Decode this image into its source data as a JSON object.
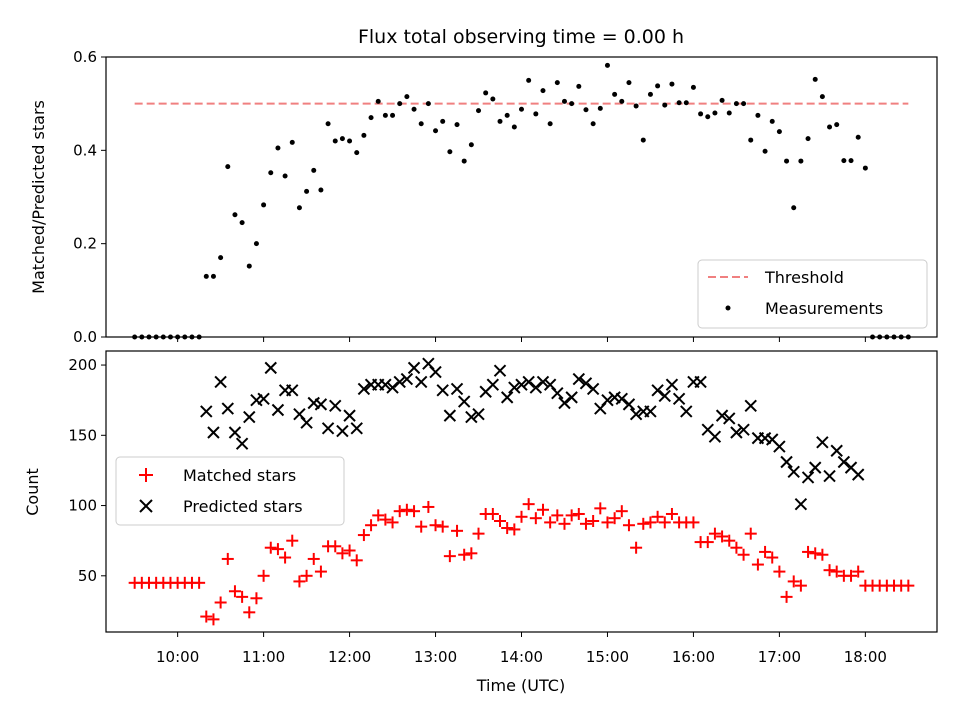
{
  "chart_data": [
    {
      "type": "scatter",
      "title": "Flux total observing time = 0.00 h",
      "ylabel": "Matched/Predicted stars",
      "ylim": [
        0,
        0.6
      ],
      "yticks": [
        "0.0",
        "0.2",
        "0.4",
        "0.6"
      ],
      "legend": {
        "position": "lower-right",
        "entries": [
          "Threshold",
          "Measurements"
        ]
      },
      "threshold": {
        "name": "Threshold",
        "value": 0.5,
        "x_start": "09:30",
        "x_end": "18:30",
        "color": "#f08080"
      },
      "series": [
        {
          "name": "Measurements",
          "color": "#000000",
          "x": [
            "09:30",
            "09:35",
            "09:40",
            "09:45",
            "09:50",
            "09:55",
            "10:00",
            "10:05",
            "10:10",
            "10:15",
            "10:20",
            "10:25",
            "10:30",
            "10:35",
            "10:40",
            "10:45",
            "10:50",
            "10:55",
            "11:00",
            "11:05",
            "11:10",
            "11:15",
            "11:20",
            "11:25",
            "11:30",
            "11:35",
            "11:40",
            "11:45",
            "11:50",
            "11:55",
            "12:00",
            "12:05",
            "12:10",
            "12:15",
            "12:20",
            "12:25",
            "12:30",
            "12:35",
            "12:40",
            "12:45",
            "12:50",
            "12:55",
            "13:00",
            "13:05",
            "13:10",
            "13:15",
            "13:20",
            "13:25",
            "13:30",
            "13:35",
            "13:40",
            "13:45",
            "13:50",
            "13:55",
            "14:00",
            "14:05",
            "14:10",
            "14:15",
            "14:20",
            "14:25",
            "14:30",
            "14:35",
            "14:40",
            "14:45",
            "14:50",
            "14:55",
            "15:00",
            "15:05",
            "15:10",
            "15:15",
            "15:20",
            "15:25",
            "15:30",
            "15:35",
            "15:40",
            "15:45",
            "15:50",
            "15:55",
            "16:00",
            "16:05",
            "16:10",
            "16:15",
            "16:20",
            "16:25",
            "16:30",
            "16:35",
            "16:40",
            "16:45",
            "16:50",
            "16:55",
            "17:00",
            "17:05",
            "17:10",
            "17:15",
            "17:20",
            "17:25",
            "17:30",
            "17:35",
            "17:40",
            "17:45",
            "17:50",
            "17:55",
            "18:00",
            "18:05",
            "18:10",
            "18:15",
            "18:20",
            "18:25",
            "18:30"
          ],
          "y": [
            0,
            0,
            0,
            0,
            0,
            0,
            0,
            0,
            0,
            0,
            0.13,
            0.13,
            0.17,
            0.365,
            0.262,
            0.245,
            0.152,
            0.2,
            0.283,
            0.352,
            0.405,
            0.345,
            0.417,
            0.277,
            0.312,
            0.357,
            0.315,
            0.457,
            0.42,
            0.425,
            0.42,
            0.395,
            0.432,
            0.47,
            0.505,
            0.475,
            0.475,
            0.5,
            0.515,
            0.488,
            0.457,
            0.5,
            0.442,
            0.462,
            0.397,
            0.455,
            0.377,
            0.412,
            0.485,
            0.523,
            0.51,
            0.462,
            0.475,
            0.45,
            0.488,
            0.55,
            0.478,
            0.528,
            0.457,
            0.545,
            0.505,
            0.5,
            0.537,
            0.487,
            0.457,
            0.49,
            0.582,
            0.52,
            0.505,
            0.545,
            0.495,
            0.422,
            0.52,
            0.538,
            0.497,
            0.542,
            0.502,
            0.502,
            0.535,
            0.478,
            0.472,
            0.48,
            0.507,
            0.48,
            0.5,
            0.5,
            0.422,
            0.475,
            0.398,
            0.462,
            0.44,
            0.377,
            0.277,
            0.377,
            0.425,
            0.552,
            0.515,
            0.45,
            0.455,
            0.378,
            0.378,
            0.428,
            0.362,
            0,
            0,
            0,
            0,
            0,
            0
          ]
        }
      ]
    },
    {
      "type": "scatter",
      "xlabel": "Time (UTC)",
      "ylabel": "Count",
      "ylim": [
        10,
        210
      ],
      "yticks": [
        "50",
        "100",
        "150",
        "200"
      ],
      "xticks": [
        "10:00",
        "11:00",
        "12:00",
        "13:00",
        "14:00",
        "15:00",
        "16:00",
        "17:00",
        "18:00"
      ],
      "xlim": [
        "09:10",
        "18:50"
      ],
      "legend": {
        "position": "center-left",
        "entries": [
          "Matched stars",
          "Predicted stars"
        ]
      },
      "series": [
        {
          "name": "Matched stars",
          "marker": "+",
          "color": "#ff0000",
          "x": [
            "09:30",
            "09:35",
            "09:40",
            "09:45",
            "09:50",
            "09:55",
            "10:00",
            "10:05",
            "10:10",
            "10:15",
            "10:20",
            "10:25",
            "10:30",
            "10:35",
            "10:40",
            "10:45",
            "10:50",
            "10:55",
            "11:00",
            "11:05",
            "11:10",
            "11:15",
            "11:20",
            "11:25",
            "11:30",
            "11:35",
            "11:40",
            "11:45",
            "11:50",
            "11:55",
            "12:00",
            "12:05",
            "12:10",
            "12:15",
            "12:20",
            "12:25",
            "12:30",
            "12:35",
            "12:40",
            "12:45",
            "12:50",
            "12:55",
            "13:00",
            "13:05",
            "13:10",
            "13:15",
            "13:20",
            "13:25",
            "13:30",
            "13:35",
            "13:40",
            "13:45",
            "13:50",
            "13:55",
            "14:00",
            "14:05",
            "14:10",
            "14:15",
            "14:20",
            "14:25",
            "14:30",
            "14:35",
            "14:40",
            "14:45",
            "14:50",
            "14:55",
            "15:00",
            "15:05",
            "15:10",
            "15:15",
            "15:20",
            "15:25",
            "15:30",
            "15:35",
            "15:40",
            "15:45",
            "15:50",
            "15:55",
            "16:00",
            "16:05",
            "16:10",
            "16:15",
            "16:20",
            "16:25",
            "16:30",
            "16:35",
            "16:40",
            "16:45",
            "16:50",
            "16:55",
            "17:00",
            "17:05",
            "17:10",
            "17:15",
            "17:20",
            "17:25",
            "17:30",
            "17:35",
            "17:40",
            "17:45",
            "17:50",
            "17:55",
            "18:00",
            "18:05",
            "18:10",
            "18:15",
            "18:20",
            "18:25",
            "18:30"
          ],
          "y": [
            45,
            45,
            45,
            45,
            45,
            45,
            45,
            45,
            45,
            45,
            21,
            19,
            31,
            62,
            39,
            35,
            24,
            34,
            50,
            70,
            69,
            63,
            75,
            46,
            50,
            62,
            53,
            71,
            71,
            66,
            68,
            61,
            79,
            86,
            93,
            90,
            88,
            96,
            97,
            96,
            85,
            99,
            86,
            85,
            64,
            82,
            65,
            66,
            80,
            94,
            94,
            89,
            84,
            83,
            92,
            101,
            91,
            97,
            88,
            93,
            87,
            93,
            94,
            87,
            89,
            98,
            88,
            91,
            96,
            86,
            70,
            87,
            88,
            92,
            88,
            94,
            88,
            88,
            88,
            74,
            74,
            80,
            78,
            75,
            70,
            65,
            80,
            58,
            67,
            63,
            53,
            35,
            46,
            43,
            67,
            66,
            65,
            54,
            53,
            50,
            50,
            53,
            43,
            43,
            43,
            43,
            43,
            43,
            43
          ]
        },
        {
          "name": "Predicted stars",
          "marker": "x",
          "color": "#000000",
          "x": [
            "10:20",
            "10:25",
            "10:30",
            "10:35",
            "10:40",
            "10:45",
            "10:50",
            "10:55",
            "11:00",
            "11:05",
            "11:10",
            "11:15",
            "11:20",
            "11:25",
            "11:30",
            "11:35",
            "11:40",
            "11:45",
            "11:50",
            "11:55",
            "12:00",
            "12:05",
            "12:10",
            "12:15",
            "12:20",
            "12:25",
            "12:30",
            "12:35",
            "12:40",
            "12:45",
            "12:50",
            "12:55",
            "13:00",
            "13:05",
            "13:10",
            "13:15",
            "13:20",
            "13:25",
            "13:30",
            "13:35",
            "13:40",
            "13:45",
            "13:50",
            "13:55",
            "14:00",
            "14:05",
            "14:10",
            "14:15",
            "14:20",
            "14:25",
            "14:30",
            "14:35",
            "14:40",
            "14:45",
            "14:50",
            "14:55",
            "15:00",
            "15:05",
            "15:10",
            "15:15",
            "15:20",
            "15:25",
            "15:30",
            "15:35",
            "15:40",
            "15:45",
            "15:50",
            "15:55",
            "16:00",
            "16:05",
            "16:10",
            "16:15",
            "16:20",
            "16:25",
            "16:30",
            "16:35",
            "16:40",
            "16:45",
            "16:50",
            "16:55",
            "17:00",
            "17:05",
            "17:10",
            "17:15",
            "17:20",
            "17:25",
            "17:30",
            "17:35",
            "17:40",
            "17:45",
            "17:50",
            "17:55"
          ],
          "y": [
            167,
            152,
            188,
            169,
            152,
            144,
            163,
            175,
            176,
            198,
            168,
            182,
            182,
            165,
            159,
            173,
            172,
            155,
            171,
            153,
            164,
            155,
            183,
            186,
            186,
            186,
            184,
            188,
            190,
            198,
            188,
            201,
            195,
            182,
            164,
            183,
            174,
            163,
            165,
            181,
            186,
            196,
            177,
            184,
            186,
            188,
            184,
            188,
            186,
            180,
            173,
            177,
            190,
            187,
            183,
            169,
            175,
            177,
            176,
            172,
            165,
            167,
            167,
            182,
            178,
            186,
            176,
            167,
            188,
            188,
            154,
            149,
            164,
            162,
            152,
            154,
            171,
            148,
            148,
            147,
            142,
            131,
            124,
            101,
            120,
            127,
            145,
            121,
            139,
            131,
            127,
            122
          ]
        }
      ]
    }
  ]
}
